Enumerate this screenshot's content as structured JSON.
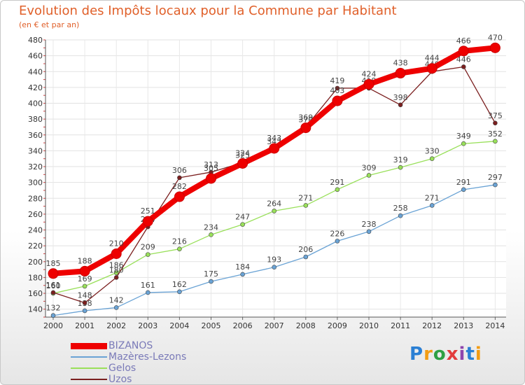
{
  "chart_data": {
    "type": "line",
    "title": "Evolution des Impôts locaux pour la Commune par Habitant",
    "subtitle": "(en € et par an)",
    "xlabel": "",
    "ylabel": "",
    "x": [
      "2000",
      "2001",
      "2002",
      "2003",
      "2004",
      "2005",
      "2006",
      "2007",
      "2008",
      "2009",
      "2010",
      "2011",
      "2012",
      "2013",
      "2014"
    ],
    "ylim": [
      130,
      480
    ],
    "yticks": [
      140,
      160,
      180,
      200,
      220,
      240,
      260,
      280,
      300,
      320,
      340,
      360,
      380,
      400,
      420,
      440,
      460,
      480
    ],
    "grid": true,
    "series": [
      {
        "name": "BIZANOS",
        "color": "#ee0000",
        "values": [
          185,
          188,
          210,
          251,
          282,
          305,
          324,
          343,
          369,
          403,
          424,
          438,
          444,
          466,
          470
        ],
        "labels": [
          "185",
          "188",
          "210",
          "251",
          "282",
          "305",
          "324",
          "343",
          "369",
          "403",
          "424",
          "438",
          "444",
          "466",
          "470"
        ]
      },
      {
        "name": "Mazères-Lezons",
        "color": "#6aa3d5",
        "values": [
          132,
          138,
          142,
          161,
          162,
          175,
          184,
          193,
          206,
          226,
          238,
          258,
          271,
          291,
          297
        ],
        "labels": [
          "132",
          "138",
          "142",
          "161",
          "162",
          "175",
          "184",
          "193",
          "206",
          "226",
          "238",
          "258",
          "271",
          "291",
          "297"
        ]
      },
      {
        "name": "Gelos",
        "color": "#99e05a",
        "values": [
          160,
          169,
          186,
          209,
          216,
          234,
          247,
          264,
          271,
          291,
          309,
          319,
          330,
          349,
          352
        ],
        "labels": [
          "160",
          "169",
          "186",
          "209",
          "216",
          "234",
          "247",
          "264",
          "271",
          "291",
          "309",
          "319",
          "330",
          "349",
          "352"
        ]
      },
      {
        "name": "Uzos",
        "color": "#7b1f1f",
        "values": [
          161,
          148,
          180,
          244,
          306,
          313,
          325,
          342,
          370,
          419,
          419,
          398,
          440,
          446,
          375
        ],
        "labels": [
          "161",
          "148",
          "180",
          "244",
          "306",
          "313",
          "325",
          "342",
          "370",
          "419",
          "419",
          "398",
          "440",
          "446",
          "375"
        ]
      }
    ]
  },
  "logo": {
    "letters": [
      "P",
      "r",
      "o",
      "x",
      "i",
      "t",
      "i"
    ]
  }
}
